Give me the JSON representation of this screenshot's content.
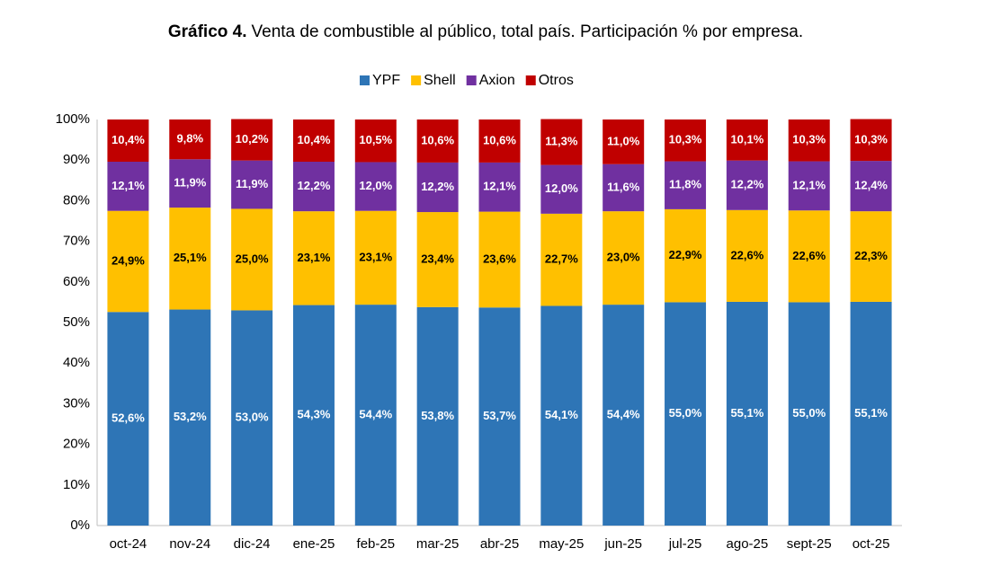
{
  "chart_data": {
    "type": "stacked_bar",
    "title_label": "Gráfico 4.",
    "title": "Venta de combustible al público, total país. Participación % por empresa.",
    "categories": [
      "oct-24",
      "nov-24",
      "dic-24",
      "ene-25",
      "feb-25",
      "mar-25",
      "abr-25",
      "may-25",
      "jun-25",
      "jul-25",
      "ago-25",
      "sept-25",
      "oct-25"
    ],
    "series": [
      {
        "name": "YPF",
        "color": "#2e75b6",
        "label_color": "#ffffff",
        "values": [
          52.6,
          53.2,
          53.0,
          54.3,
          54.4,
          53.8,
          53.7,
          54.1,
          54.4,
          55.0,
          55.1,
          55.0,
          55.1
        ],
        "value_labels": [
          "52,6%",
          "53,2%",
          "53,0%",
          "54,3%",
          "54,4%",
          "53,8%",
          "53,7%",
          "54,1%",
          "54,4%",
          "55,0%",
          "55,1%",
          "55,0%",
          "55,1%"
        ]
      },
      {
        "name": "Shell",
        "color": "#ffc000",
        "label_color": "#000000",
        "values": [
          24.9,
          25.1,
          25.0,
          23.1,
          23.1,
          23.4,
          23.6,
          22.7,
          23.0,
          22.9,
          22.6,
          22.6,
          22.3
        ],
        "value_labels": [
          "24,9%",
          "25,1%",
          "25,0%",
          "23,1%",
          "23,1%",
          "23,4%",
          "23,6%",
          "22,7%",
          "23,0%",
          "22,9%",
          "22,6%",
          "22,6%",
          "22,3%"
        ]
      },
      {
        "name": "Axion",
        "color": "#7030a0",
        "label_color": "#ffffff",
        "values": [
          12.1,
          11.9,
          11.9,
          12.2,
          12.0,
          12.2,
          12.1,
          12.0,
          11.6,
          11.8,
          12.2,
          12.1,
          12.4
        ],
        "value_labels": [
          "12,1%",
          "11,9%",
          "11,9%",
          "12,2%",
          "12,0%",
          "12,2%",
          "12,1%",
          "12,0%",
          "11,6%",
          "11,8%",
          "12,2%",
          "12,1%",
          "12,4%"
        ]
      },
      {
        "name": "Otros",
        "color": "#c00000",
        "label_color": "#ffffff",
        "values": [
          10.4,
          9.8,
          10.2,
          10.4,
          10.5,
          10.6,
          10.6,
          11.3,
          11.0,
          10.3,
          10.1,
          10.3,
          10.3
        ],
        "value_labels": [
          "10,4%",
          "9,8%",
          "10,2%",
          "10,4%",
          "10,5%",
          "10,6%",
          "10,6%",
          "11,3%",
          "11,0%",
          "10,3%",
          "10,1%",
          "10,3%",
          "10,3%"
        ]
      }
    ],
    "ylim": [
      0,
      100
    ],
    "yticks": [
      {
        "value": 0,
        "label": "0%"
      },
      {
        "value": 10,
        "label": "10%"
      },
      {
        "value": 20,
        "label": "20%"
      },
      {
        "value": 30,
        "label": "30%"
      },
      {
        "value": 40,
        "label": "40%"
      },
      {
        "value": 50,
        "label": "50%"
      },
      {
        "value": 60,
        "label": "60%"
      },
      {
        "value": 70,
        "label": "70%"
      },
      {
        "value": 80,
        "label": "80%"
      },
      {
        "value": 90,
        "label": "90%"
      },
      {
        "value": 100,
        "label": "100%"
      }
    ],
    "grid": false,
    "legend": "top"
  }
}
